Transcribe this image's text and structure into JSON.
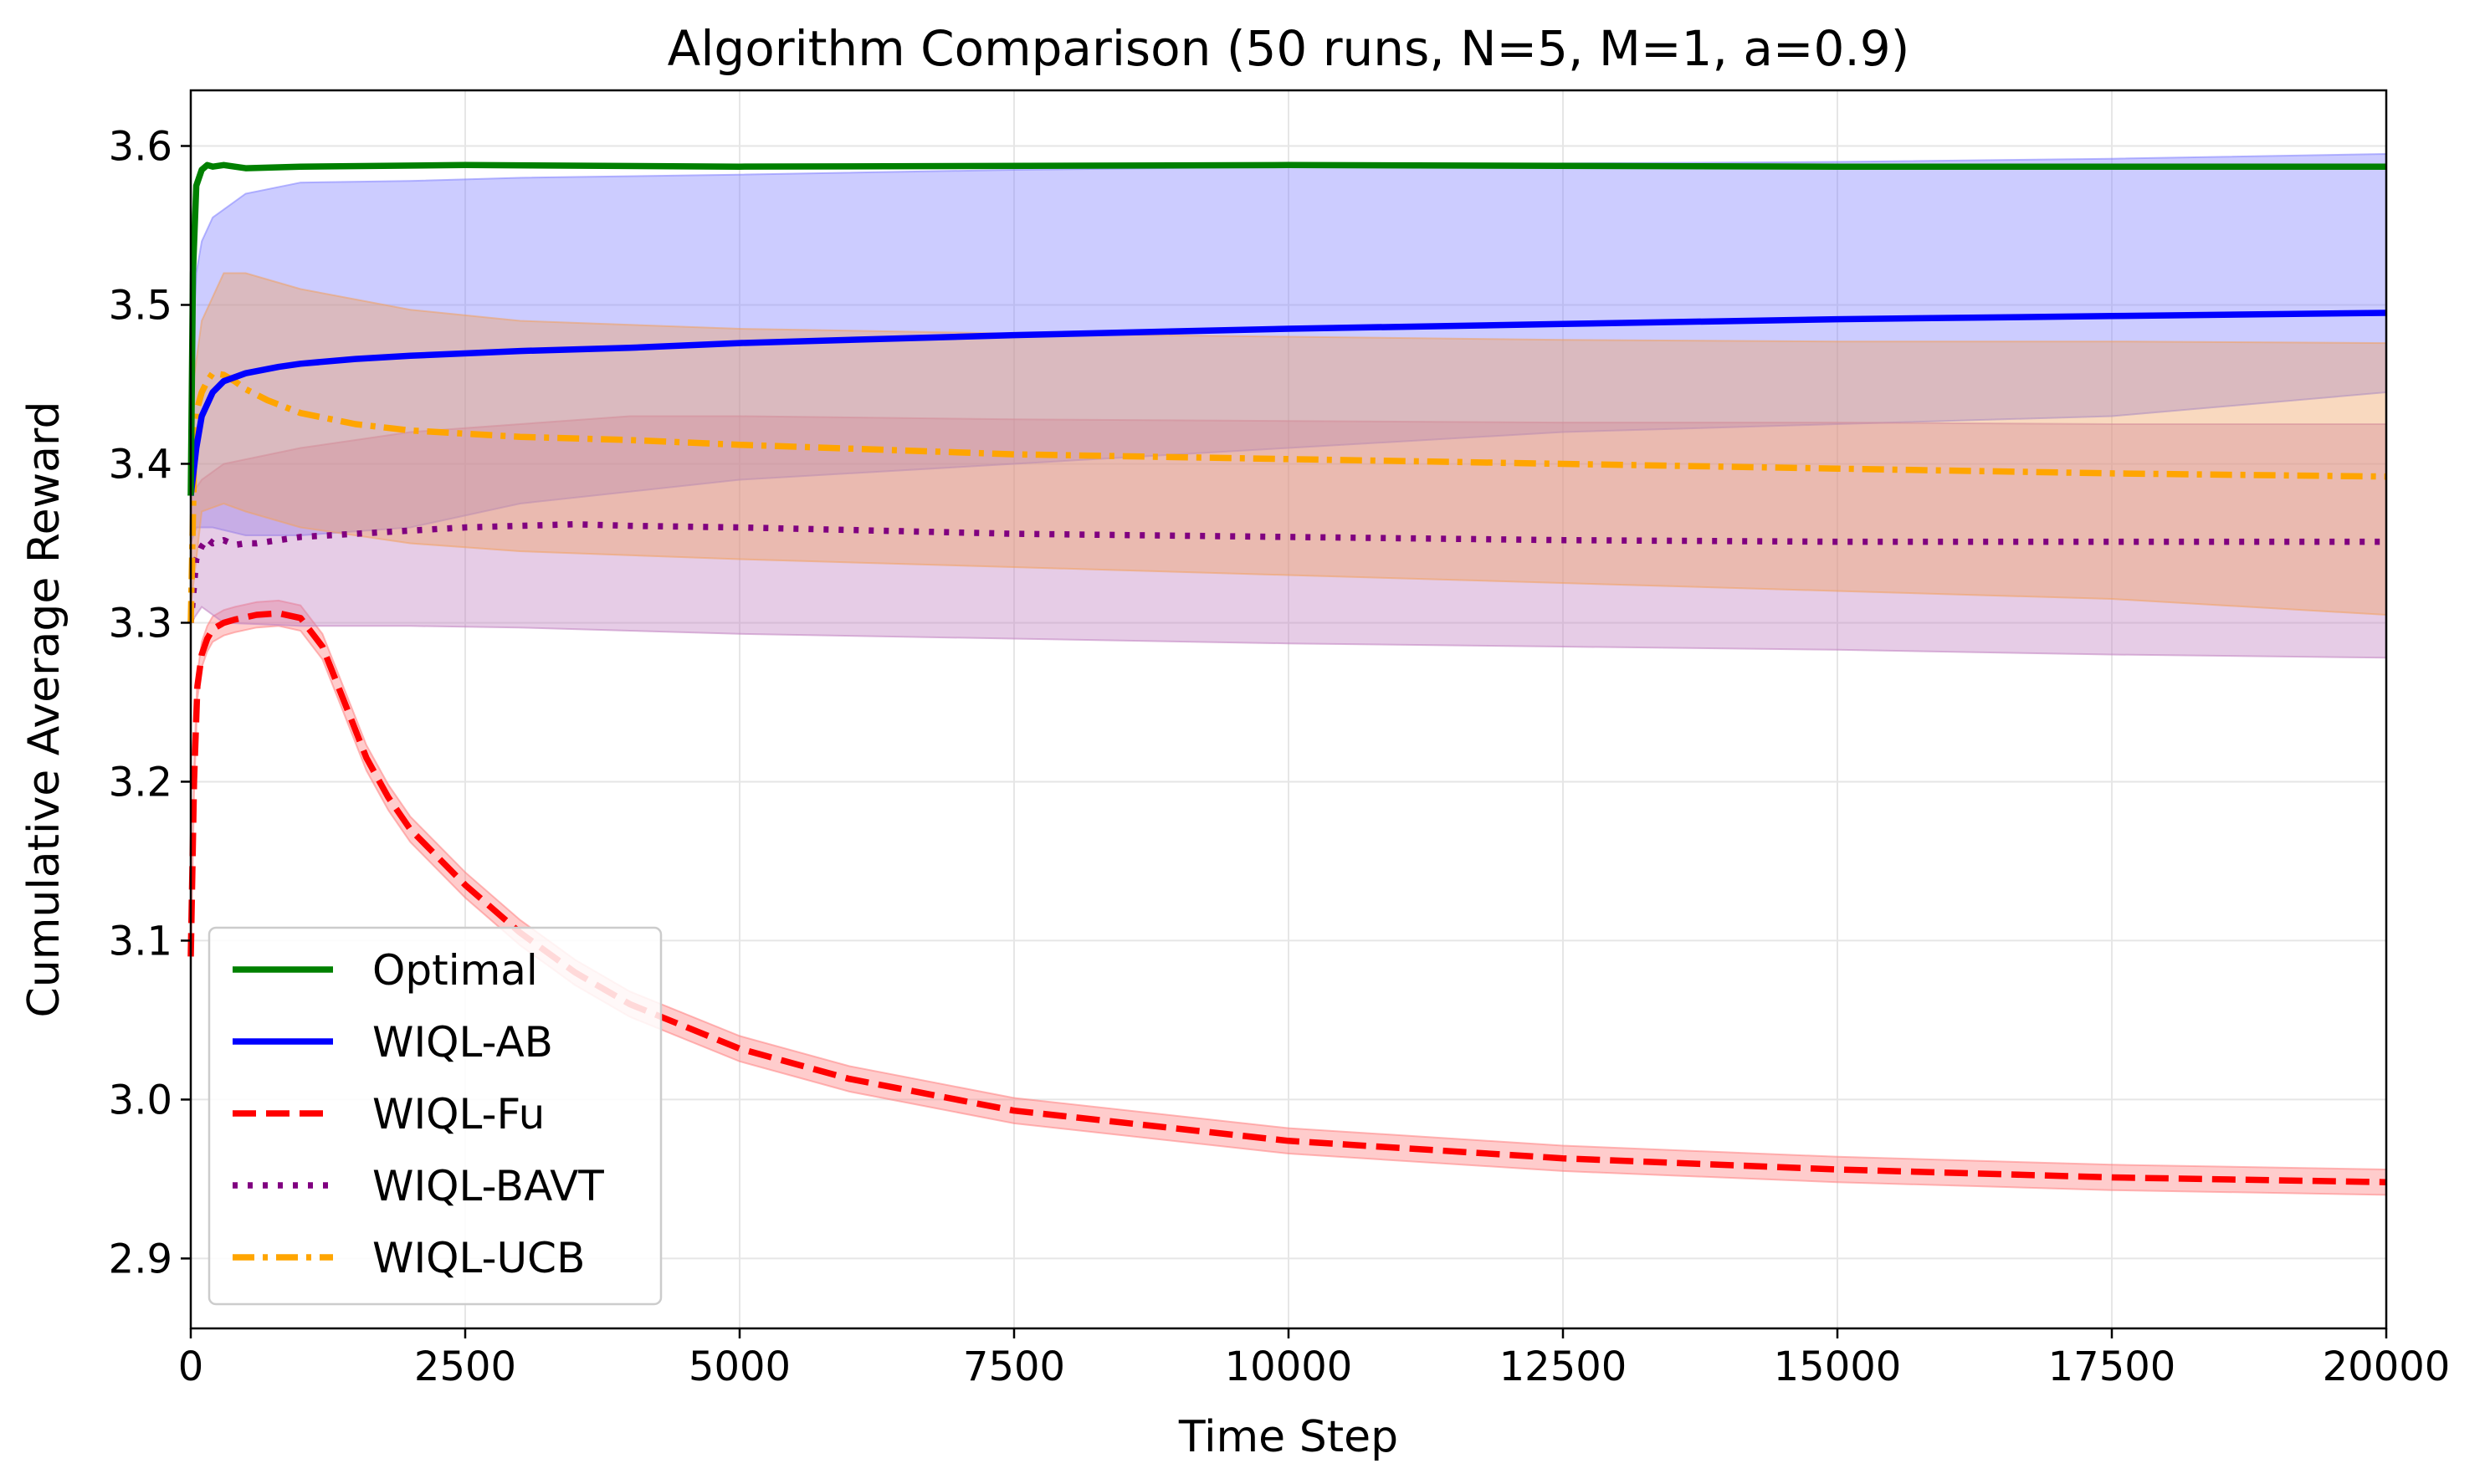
{
  "chart_data": {
    "type": "line",
    "title": "Algorithm Comparison (50 runs, N=5, M=1, a=0.9)",
    "xlabel": "Time Step",
    "ylabel": "Cumulative Average Reward",
    "xlim": [
      0,
      20000
    ],
    "ylim": [
      2.856,
      3.635
    ],
    "x_ticks": [
      0,
      2500,
      5000,
      7500,
      10000,
      12500,
      15000,
      17500,
      20000
    ],
    "y_ticks": [
      2.9,
      3.0,
      3.1,
      3.2,
      3.3,
      3.4,
      3.5,
      3.6
    ],
    "grid": true,
    "legend_position": "lower-left",
    "series": [
      {
        "name": "Optimal",
        "color": "#008000",
        "style": "solid",
        "x": [
          0,
          20,
          50,
          100,
          150,
          200,
          300,
          500,
          1000,
          2500,
          5000,
          10000,
          15000,
          20000
        ],
        "y": [
          3.38,
          3.52,
          3.575,
          3.585,
          3.588,
          3.587,
          3.588,
          3.586,
          3.587,
          3.588,
          3.587,
          3.588,
          3.587,
          3.587
        ],
        "band_lower": [],
        "band_upper": []
      },
      {
        "name": "WIQL-AB",
        "color": "#0000ff",
        "style": "solid",
        "x": [
          0,
          50,
          100,
          200,
          300,
          500,
          800,
          1000,
          1500,
          2000,
          3000,
          4000,
          5000,
          7500,
          10000,
          12500,
          15000,
          17500,
          20000
        ],
        "y": [
          3.38,
          3.41,
          3.43,
          3.445,
          3.452,
          3.457,
          3.461,
          3.463,
          3.466,
          3.468,
          3.471,
          3.473,
          3.476,
          3.481,
          3.485,
          3.488,
          3.491,
          3.493,
          3.495
        ],
        "band_color": "#8080ff",
        "band_x": [
          0,
          50,
          100,
          200,
          500,
          1000,
          2000,
          3000,
          5000,
          7500,
          10000,
          12500,
          15000,
          17500,
          20000
        ],
        "band_lower": [
          3.35,
          3.36,
          3.36,
          3.36,
          3.355,
          3.355,
          3.36,
          3.375,
          3.39,
          3.4,
          3.41,
          3.42,
          3.425,
          3.43,
          3.445
        ],
        "band_upper": [
          3.45,
          3.52,
          3.54,
          3.555,
          3.57,
          3.577,
          3.578,
          3.58,
          3.582,
          3.585,
          3.587,
          3.589,
          3.59,
          3.592,
          3.595
        ]
      },
      {
        "name": "WIQL-Fu",
        "color": "#ff0000",
        "style": "dashed",
        "x": [
          0,
          30,
          60,
          100,
          150,
          200,
          300,
          400,
          600,
          800,
          1000,
          1200,
          1400,
          1600,
          1800,
          2000,
          2500,
          3000,
          3500,
          4000,
          5000,
          6000,
          7500,
          10000,
          12500,
          15000,
          17500,
          20000
        ],
        "y": [
          3.09,
          3.2,
          3.26,
          3.28,
          3.29,
          3.296,
          3.3,
          3.302,
          3.305,
          3.306,
          3.303,
          3.285,
          3.25,
          3.215,
          3.19,
          3.17,
          3.135,
          3.105,
          3.08,
          3.06,
          3.032,
          3.013,
          2.993,
          2.974,
          2.963,
          2.956,
          2.951,
          2.948
        ],
        "band_color": "#ff8080",
        "band_half_width": 0.008
      },
      {
        "name": "WIQL-BAVT",
        "color": "#800080",
        "style": "dotted",
        "x": [
          0,
          50,
          100,
          150,
          200,
          300,
          400,
          500,
          600,
          800,
          1000,
          1500,
          2000,
          2500,
          3000,
          3500,
          4000,
          5000,
          7500,
          10000,
          12500,
          15000,
          17500,
          20000
        ],
        "y": [
          3.3,
          3.34,
          3.348,
          3.353,
          3.35,
          3.352,
          3.349,
          3.35,
          3.35,
          3.352,
          3.354,
          3.356,
          3.358,
          3.36,
          3.361,
          3.362,
          3.361,
          3.36,
          3.356,
          3.354,
          3.352,
          3.351,
          3.351,
          3.351
        ],
        "band_color": "#c080c0",
        "band_x": [
          0,
          100,
          300,
          1000,
          2000,
          3000,
          4000,
          5000,
          7500,
          10000,
          12500,
          15000,
          17500,
          20000
        ],
        "band_lower": [
          3.3,
          3.31,
          3.3,
          3.298,
          3.298,
          3.297,
          3.295,
          3.293,
          3.29,
          3.287,
          3.285,
          3.283,
          3.28,
          3.278
        ],
        "band_upper": [
          3.38,
          3.39,
          3.4,
          3.41,
          3.42,
          3.425,
          3.43,
          3.43,
          3.428,
          3.427,
          3.426,
          3.426,
          3.425,
          3.425
        ]
      },
      {
        "name": "WIQL-UCB",
        "color": "#ffa500",
        "style": "dashdot",
        "x": [
          0,
          30,
          60,
          100,
          150,
          200,
          300,
          400,
          500,
          700,
          1000,
          1500,
          2000,
          2500,
          3000,
          4000,
          5000,
          7500,
          10000,
          12500,
          15000,
          17500,
          20000
        ],
        "y": [
          3.3,
          3.4,
          3.435,
          3.445,
          3.452,
          3.457,
          3.456,
          3.452,
          3.447,
          3.44,
          3.432,
          3.425,
          3.421,
          3.419,
          3.417,
          3.415,
          3.412,
          3.406,
          3.403,
          3.4,
          3.397,
          3.394,
          3.392
        ],
        "band_color": "#f0a060",
        "band_x": [
          0,
          100,
          300,
          500,
          1000,
          2000,
          3000,
          5000,
          7500,
          10000,
          12500,
          15000,
          17500,
          20000
        ],
        "band_lower": [
          3.31,
          3.37,
          3.375,
          3.37,
          3.36,
          3.35,
          3.345,
          3.34,
          3.335,
          3.33,
          3.325,
          3.32,
          3.315,
          3.305
        ],
        "band_upper": [
          3.44,
          3.49,
          3.52,
          3.52,
          3.51,
          3.497,
          3.49,
          3.485,
          3.482,
          3.48,
          3.478,
          3.477,
          3.477,
          3.476
        ]
      }
    ]
  }
}
